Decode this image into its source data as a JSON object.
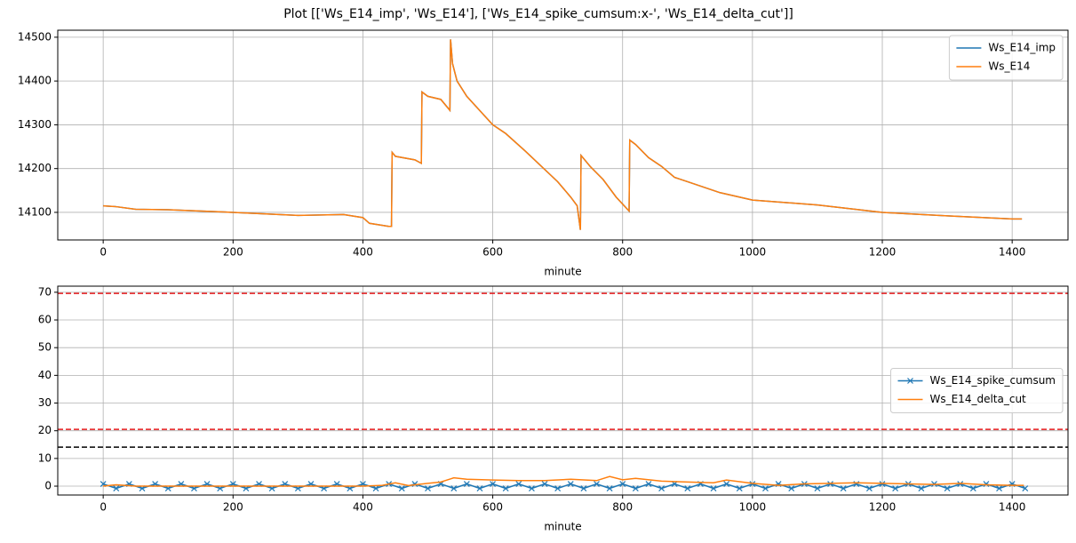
{
  "title": "Plot [['Ws_E14_imp', 'Ws_E14'], ['Ws_E14_spike_cumsum:x-', 'Ws_E14_delta_cut']]",
  "chart_data": [
    {
      "type": "line",
      "xlabel": "minute",
      "grid": true,
      "legend": "upper right",
      "xlim": [
        -70,
        1486
      ],
      "xticks": [
        0,
        200,
        400,
        600,
        800,
        1000,
        1200,
        1400
      ],
      "ylim": [
        14037,
        14516
      ],
      "yticks": [
        14100,
        14200,
        14300,
        14400,
        14500
      ],
      "x": [
        0,
        20,
        50,
        100,
        200,
        300,
        370,
        400,
        410,
        440,
        444,
        445,
        450,
        480,
        490,
        491,
        500,
        520,
        534,
        535,
        538,
        545,
        560,
        600,
        620,
        650,
        700,
        720,
        730,
        735,
        736,
        750,
        770,
        790,
        810,
        811,
        820,
        840,
        860,
        880,
        900,
        950,
        1000,
        1100,
        1200,
        1300,
        1400,
        1415
      ],
      "series": [
        {
          "name": "Ws_E14_imp",
          "color": "#1f77b4",
          "values": [
            14115,
            14113,
            14107,
            14106,
            14100,
            14093,
            14095,
            14088,
            14075,
            14068,
            14068,
            14237,
            14228,
            14220,
            14212,
            14375,
            14365,
            14358,
            14333,
            14495,
            14440,
            14400,
            14365,
            14300,
            14280,
            14240,
            14170,
            14135,
            14115,
            14060,
            14230,
            14205,
            14175,
            14135,
            14103,
            14265,
            14255,
            14225,
            14205,
            14180,
            14170,
            14145,
            14128,
            14117,
            14100,
            14092,
            14085,
            14085
          ]
        },
        {
          "name": "Ws_E14",
          "color": "#ff7f0e",
          "values": [
            14115,
            14113,
            14107,
            14106,
            14100,
            14093,
            14095,
            14088,
            14075,
            14068,
            14068,
            14237,
            14228,
            14220,
            14212,
            14375,
            14365,
            14358,
            14333,
            14495,
            14440,
            14400,
            14365,
            14300,
            14280,
            14240,
            14170,
            14135,
            14115,
            14060,
            14230,
            14205,
            14175,
            14135,
            14103,
            14265,
            14255,
            14225,
            14205,
            14180,
            14170,
            14145,
            14128,
            14117,
            14100,
            14092,
            14085,
            14085
          ]
        }
      ]
    },
    {
      "type": "line",
      "xlabel": "minute",
      "grid": true,
      "legend": "center right",
      "xlim": [
        -70,
        1486
      ],
      "xticks": [
        0,
        200,
        400,
        600,
        800,
        1000,
        1200,
        1400
      ],
      "ylim": [
        -3.2,
        72.2
      ],
      "yticks": [
        0,
        10,
        20,
        30,
        40,
        50,
        60,
        70
      ],
      "hlines": [
        {
          "value": 69.6,
          "color": "#e41a1c",
          "style": "dashed"
        },
        {
          "value": 20.5,
          "color": "#e41a1c",
          "style": "dashed"
        },
        {
          "value": 14.1,
          "color": "#000000",
          "style": "dashed"
        }
      ],
      "series": [
        {
          "name": "Ws_E14_spike_cumsum",
          "color": "#1f77b4",
          "marker": "x",
          "x": [
            0,
            20,
            40,
            60,
            80,
            100,
            120,
            140,
            160,
            180,
            200,
            220,
            240,
            260,
            280,
            300,
            320,
            340,
            360,
            380,
            400,
            420,
            440,
            460,
            480,
            500,
            520,
            540,
            560,
            580,
            600,
            620,
            640,
            660,
            680,
            700,
            720,
            740,
            760,
            780,
            800,
            820,
            840,
            860,
            880,
            900,
            920,
            940,
            960,
            980,
            1000,
            1020,
            1040,
            1060,
            1080,
            1100,
            1120,
            1140,
            1160,
            1180,
            1200,
            1220,
            1240,
            1260,
            1280,
            1300,
            1320,
            1340,
            1360,
            1380,
            1400,
            1420
          ],
          "values": [
            0.8,
            -0.8,
            0.8,
            -0.8,
            0.8,
            -0.8,
            0.8,
            -0.8,
            0.8,
            -0.8,
            0.8,
            -0.8,
            0.8,
            -0.8,
            0.8,
            -0.8,
            0.8,
            -0.8,
            0.8,
            -0.8,
            0.8,
            -0.8,
            0.8,
            -0.8,
            0.8,
            -0.8,
            0.8,
            -0.8,
            0.8,
            -0.8,
            0.8,
            -0.8,
            0.8,
            -0.8,
            0.8,
            -0.8,
            0.8,
            -0.8,
            0.8,
            -0.8,
            0.8,
            -0.8,
            0.8,
            -0.8,
            0.8,
            -0.8,
            0.8,
            -0.8,
            0.8,
            -0.8,
            0.8,
            -0.8,
            0.8,
            -0.8,
            0.8,
            -0.8,
            0.8,
            -0.8,
            0.8,
            -0.8,
            0.8,
            -0.8,
            0.8,
            -0.8,
            0.8,
            -0.8,
            0.8,
            -0.8,
            0.8,
            -0.8,
            0.8,
            -0.8
          ]
        },
        {
          "name": "Ws_E14_delta_cut",
          "color": "#ff7f0e",
          "x": [
            0,
            20,
            50,
            100,
            200,
            300,
            400,
            430,
            450,
            470,
            500,
            520,
            540,
            560,
            600,
            640,
            680,
            720,
            760,
            780,
            800,
            820,
            860,
            900,
            940,
            960,
            1000,
            1040,
            1080,
            1120,
            1160,
            1200,
            1240,
            1280,
            1320,
            1360,
            1400,
            1418
          ],
          "values": [
            0,
            0.5,
            0,
            0,
            0,
            0,
            0,
            0.3,
            1.2,
            0.2,
            1,
            1.5,
            3,
            2.5,
            2.2,
            2,
            2,
            2.5,
            2,
            3.5,
            2.3,
            2.8,
            1.8,
            1.5,
            1.2,
            2.2,
            1,
            0.3,
            0.8,
            1,
            1.2,
            1.0,
            0.8,
            0.6,
            1,
            0.5,
            0.3,
            0.3
          ]
        }
      ]
    }
  ]
}
